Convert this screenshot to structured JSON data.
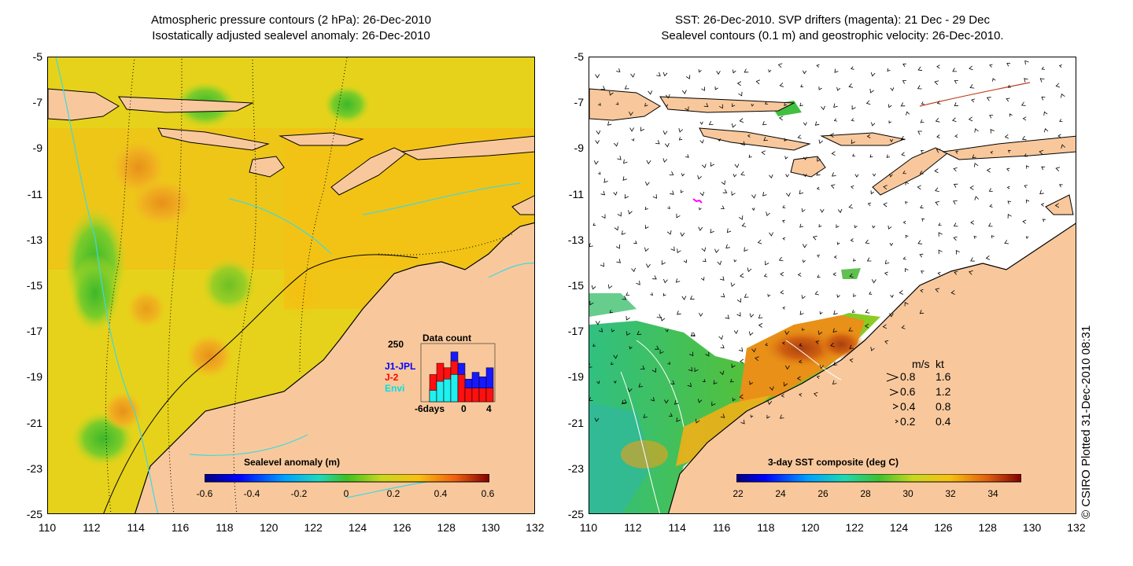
{
  "left_panel": {
    "title_line1": "Atmospheric pressure contours (2 hPa): 26-Dec-2010",
    "title_line2": "Isostatically adjusted sealevel anomaly: 26-Dec-2010",
    "colorbar": {
      "title": "Sealevel anomaly (m)",
      "ticks": [
        "-0.6",
        "-0.4",
        "-0.2",
        "0",
        "0.2",
        "0.4",
        "0.6"
      ]
    },
    "data_count": {
      "title": "Data count",
      "ymax_label": "250",
      "x_labels": [
        "-6days",
        "0",
        "4"
      ],
      "series_labels": [
        {
          "name": "J1-JPL",
          "color": "#0000ff"
        },
        {
          "name": "J-2",
          "color": "#ff0000"
        },
        {
          "name": "Envi",
          "color": "#00e0e0"
        }
      ],
      "bars": [
        {
          "blue": 0,
          "red": 0,
          "cyan": 0
        },
        {
          "blue": 60,
          "red": 120,
          "cyan": 50
        },
        {
          "blue": 100,
          "red": 170,
          "cyan": 90
        },
        {
          "blue": 120,
          "red": 150,
          "cyan": 100
        },
        {
          "blue": 220,
          "red": 180,
          "cyan": 120
        },
        {
          "blue": 170,
          "red": 120,
          "cyan": 0
        },
        {
          "blue": 100,
          "red": 60,
          "cyan": 0
        },
        {
          "blue": 130,
          "red": 60,
          "cyan": 0
        },
        {
          "blue": 110,
          "red": 60,
          "cyan": 0
        },
        {
          "blue": 150,
          "red": 60,
          "cyan": 0
        }
      ]
    }
  },
  "right_panel": {
    "title_line1": "SST: 26-Dec-2010. SVP drifters (magenta): 21 Dec - 29 Dec",
    "title_line2": "Sealevel contours (0.1 m) and geostrophic velocity: 26-Dec-2010.",
    "colorbar": {
      "title": "3-day SST composite (deg C)",
      "ticks": [
        "22",
        "24",
        "26",
        "28",
        "30",
        "32",
        "34"
      ]
    },
    "velocity_legend": {
      "header_ms": "m/s",
      "header_kt": "kt",
      "rows": [
        {
          "ms": "0.8",
          "kt": "1.6"
        },
        {
          "ms": "0.6",
          "kt": "1.2"
        },
        {
          "ms": "0.4",
          "kt": "0.8"
        },
        {
          "ms": "0.2",
          "kt": "0.4"
        }
      ]
    }
  },
  "axes": {
    "y_ticks": [
      "-5",
      "-7",
      "-9",
      "-11",
      "-13",
      "-15",
      "-17",
      "-19",
      "-21",
      "-23",
      "-25"
    ],
    "x_ticks": [
      "110",
      "112",
      "114",
      "116",
      "118",
      "120",
      "122",
      "124",
      "126",
      "128",
      "130",
      "132"
    ],
    "lon_range": [
      110,
      132
    ],
    "lat_range": [
      -25,
      -5
    ]
  },
  "copyright": "© CSIRO Plotted 31-Dec-2010 08:31",
  "colors": {
    "land": "#f8c89c",
    "no_data": "#ffffff",
    "contour_cyan": "#40d8e0",
    "sla_base": "#e6d21a"
  }
}
